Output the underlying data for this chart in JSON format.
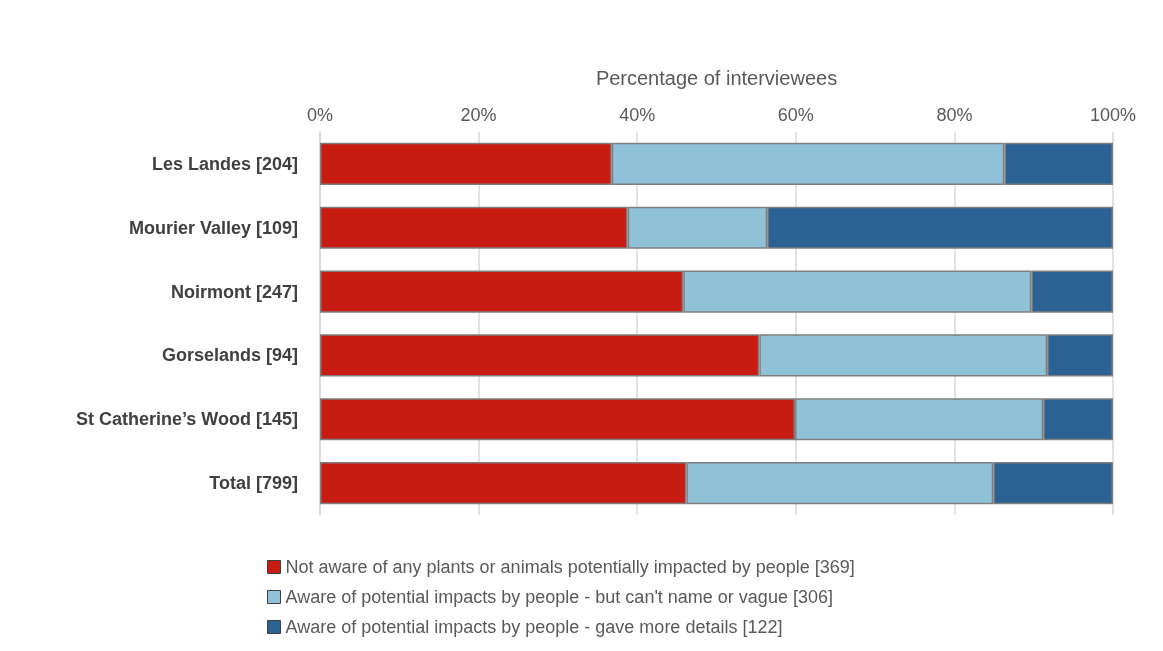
{
  "chart_data": {
    "type": "bar",
    "orientation": "horizontal",
    "stacked": true,
    "xlabel": "Percentage of interviewees",
    "categories": [
      "Les Landes [204]",
      "Mourier Valley [109]",
      "Noirmont [247]",
      "Gorselands [94]",
      "St Catherine’s Wood [145]",
      "Total [799]"
    ],
    "series": [
      {
        "name": "Not aware of any plants or animals potentially impacted by people [369]",
        "color": "#c81b12",
        "values": [
          36.8,
          38.8,
          45.8,
          55.4,
          59.9,
          46.2
        ]
      },
      {
        "name": "Aware of potential impacts by people - but can't name or vague [306]",
        "color": "#8fc1d7",
        "values": [
          49.5,
          17.6,
          43.9,
          36.3,
          31.3,
          38.7
        ]
      },
      {
        "name": "Aware of potential impacts by people - gave more details [122]",
        "color": "#2b6193",
        "values": [
          13.7,
          43.6,
          10.3,
          8.3,
          8.8,
          15.1
        ]
      }
    ],
    "xlim": [
      0,
      100
    ],
    "xticks": [
      {
        "value": 0,
        "label": "0%"
      },
      {
        "value": 20,
        "label": "20%"
      },
      {
        "value": 40,
        "label": "40%"
      },
      {
        "value": 60,
        "label": "60%"
      },
      {
        "value": 80,
        "label": "80%"
      },
      {
        "value": 100,
        "label": "100%"
      }
    ],
    "grid": "x",
    "legend": "bottom"
  }
}
